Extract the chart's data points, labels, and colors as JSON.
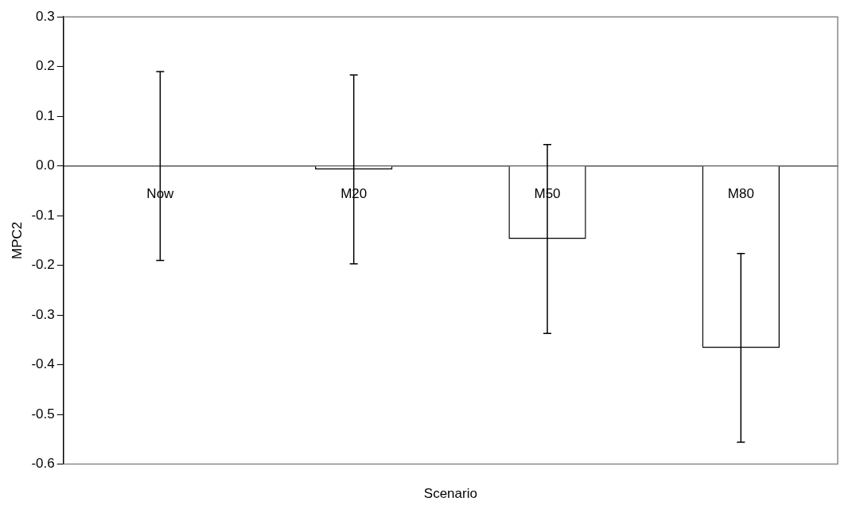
{
  "chart_data": {
    "type": "bar",
    "xlabel": "Scenario",
    "ylabel": "MPC2",
    "categories": [
      "Now",
      "M20",
      "M50",
      "M80"
    ],
    "values": [
      0,
      -0.007,
      -0.147,
      -0.366
    ],
    "errors": [
      0.19,
      0.19,
      0.19,
      0.19
    ],
    "color": "#ffffff",
    "ylim": [
      -0.6,
      0.3
    ],
    "yticks": [
      {
        "value": 0.3,
        "label": "0.3"
      },
      {
        "value": 0.2,
        "label": "0.2"
      },
      {
        "value": 0.1,
        "label": "0.1"
      },
      {
        "value": 0,
        "label": "0.0"
      },
      {
        "value": -0.1,
        "label": "-0.1"
      },
      {
        "value": -0.2,
        "label": "-0.2"
      },
      {
        "value": -0.3,
        "label": "-0.3"
      },
      {
        "value": -0.4,
        "label": "-0.4"
      },
      {
        "value": -0.5,
        "label": "-0.5"
      },
      {
        "value": -0.6,
        "label": "-0.6"
      }
    ],
    "grid": false,
    "legend": false
  }
}
